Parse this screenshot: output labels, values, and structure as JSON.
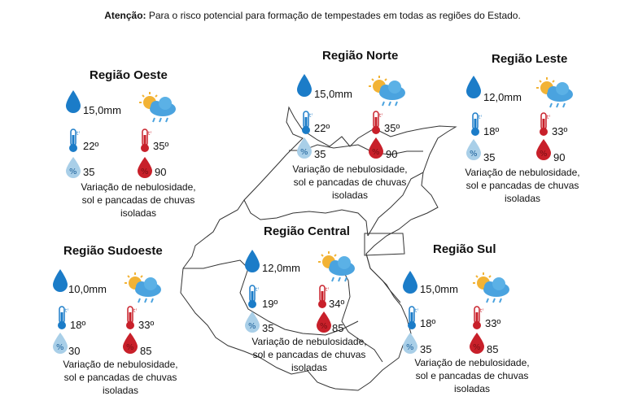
{
  "notice": {
    "label": "Atenção:",
    "text": "Para o risco potencial para formação de tempestades em todas as regiões do Estado."
  },
  "icons": {
    "rain": "rain-drop-icon",
    "weather": "sun-cloud-rain-icon",
    "temp_min": "thermometer-blue-icon",
    "temp_max": "thermometer-red-icon",
    "humidity_min": "humidity-blue-drop-icon",
    "humidity_max": "humidity-red-drop-icon"
  },
  "colors": {
    "blue": "#1b7cc8",
    "red": "#c8202a",
    "light_blue": "#a9cfe8"
  },
  "regions": {
    "oeste": {
      "name": "Região Oeste",
      "rain": "15,0mm",
      "tmin": "22º",
      "tmax": "35º",
      "hmin": "35",
      "hmax": "90",
      "desc": [
        "Variação de nebulosidade,",
        "sol e pancadas de chuvas",
        "isoladas"
      ]
    },
    "norte": {
      "name": "Região Norte",
      "rain": "15,0mm",
      "tmin": "22º",
      "tmax": "35º",
      "hmin": "35",
      "hmax": "90",
      "desc": [
        "Variação de nebulosidade,",
        "sol e pancadas de chuvas",
        "isoladas"
      ]
    },
    "leste": {
      "name": "Região Leste",
      "rain": "12,0mm",
      "tmin": "18º",
      "tmax": "33º",
      "hmin": "35",
      "hmax": "90",
      "desc": [
        "Variação de nebulosidade,",
        "sol e pancadas de chuvas",
        "isoladas"
      ]
    },
    "central": {
      "name": "Região Central",
      "rain": "12,0mm",
      "tmin": "19º",
      "tmax": "34º",
      "hmin": "35",
      "hmax": "85",
      "desc": [
        "Variação de nebulosidade,",
        "sol e pancadas de chuvas",
        "isoladas"
      ]
    },
    "sudoeste": {
      "name": "Região Sudoeste",
      "rain": "10,0mm",
      "tmin": "18º",
      "tmax": "33º",
      "hmin": "30",
      "hmax": "85",
      "desc": [
        "Variação de nebulosidade,",
        "sol e pancadas de chuvas",
        "isoladas"
      ]
    },
    "sul": {
      "name": "Região Sul",
      "rain": "15,0mm",
      "tmin": "18º",
      "tmax": "33º",
      "hmin": "35",
      "hmax": "85",
      "desc": [
        "Variação de nebulosidade,",
        "sol e pancadas de chuvas",
        "isoladas"
      ]
    }
  }
}
